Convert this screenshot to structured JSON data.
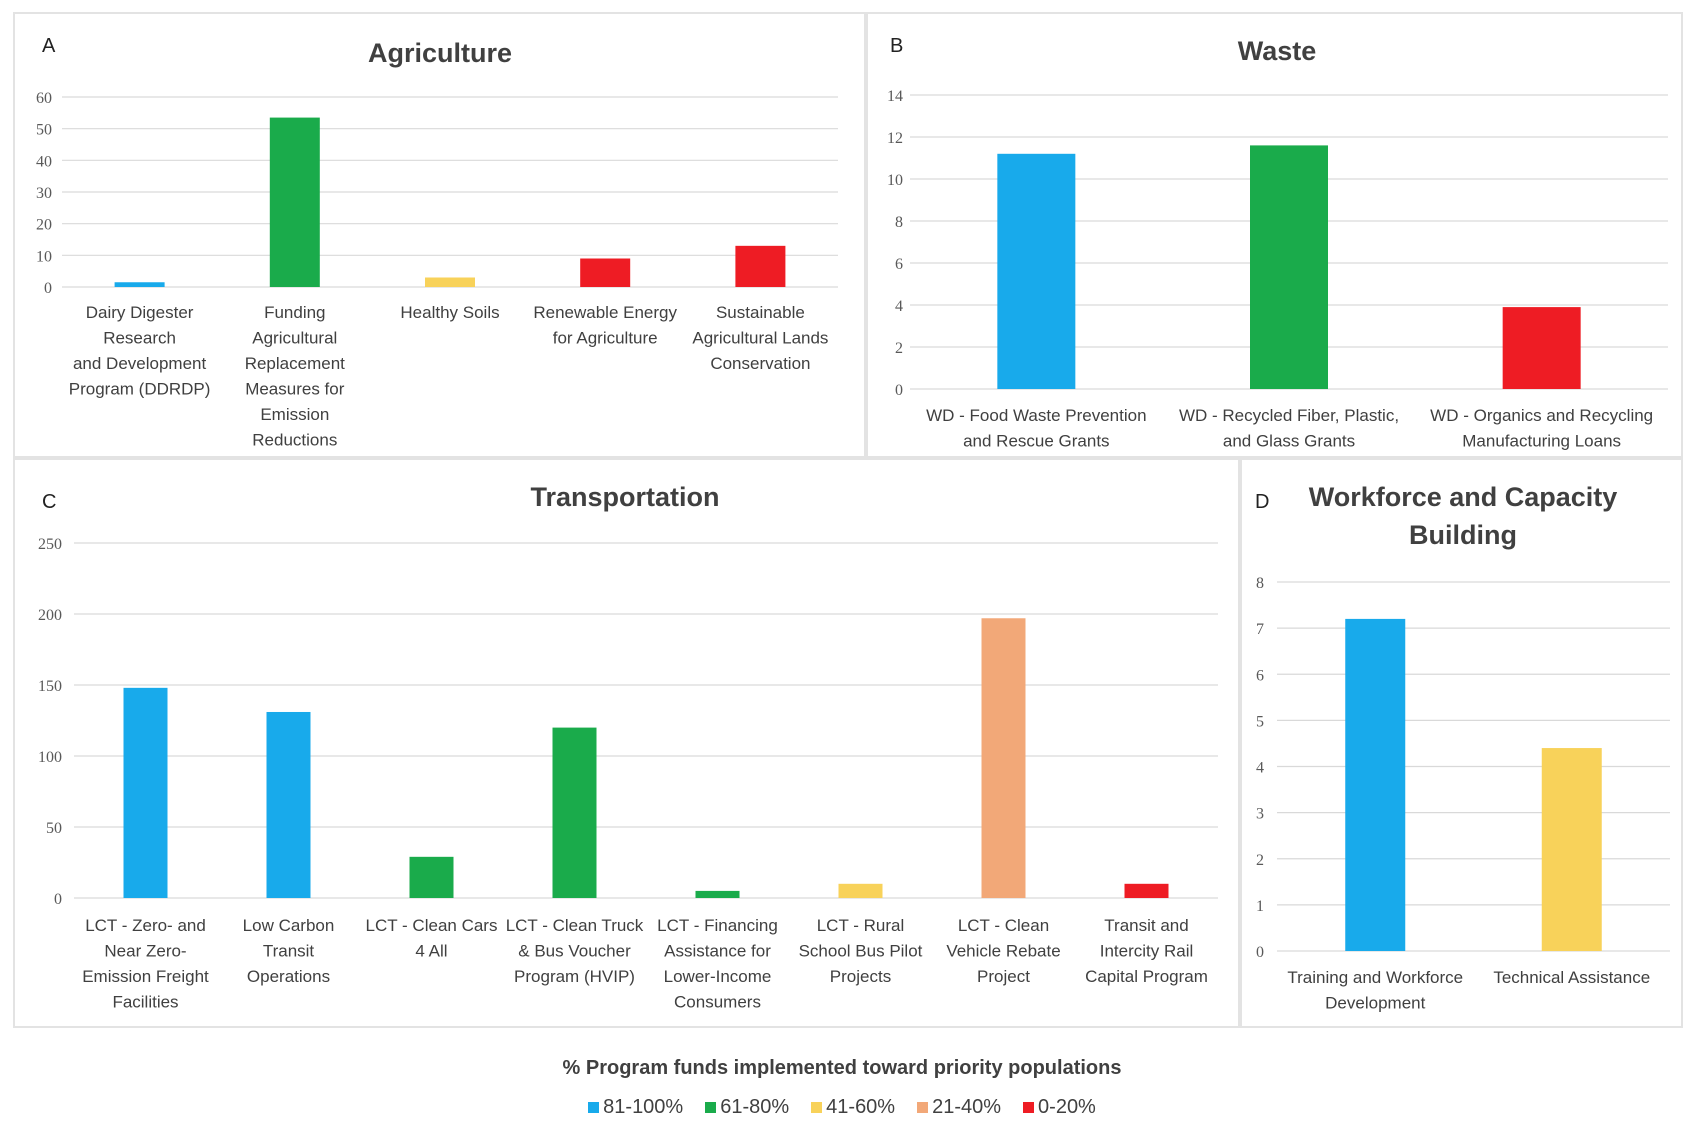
{
  "palette": {
    "81-100%": "#18aaeb",
    "61-80%": "#1aab4b",
    "41-60%": "#f8d25a",
    "21-40%": "#f2a878",
    "0-20%": "#ee1c24"
  },
  "legend": {
    "title": "% Program funds implemented toward priority populations",
    "items": [
      {
        "label": "81-100%",
        "color": "#18aaeb"
      },
      {
        "label": "61-80%",
        "color": "#1aab4b"
      },
      {
        "label": "41-60%",
        "color": "#f8d25a"
      },
      {
        "label": "21-40%",
        "color": "#f2a878"
      },
      {
        "label": "0-20%",
        "color": "#ee1c24"
      }
    ]
  },
  "chart_data": [
    {
      "panel": "A",
      "type": "bar",
      "title": "Agriculture",
      "ylim": [
        0,
        60
      ],
      "yticks": [
        0,
        10,
        20,
        30,
        40,
        50,
        60
      ],
      "grid": true,
      "categories": [
        "Dairy Digester Research and Development Program (DDRDP)",
        "Funding Agricultural Replacement Measures for Emission Reductions",
        "Healthy Soils",
        "Renewable Energy for Agriculture",
        "Sustainable Agricultural Lands Conservation"
      ],
      "values": [
        1.5,
        53.5,
        3,
        9,
        13
      ],
      "color_groups": [
        "81-100%",
        "61-80%",
        "41-60%",
        "0-20%",
        "0-20%"
      ]
    },
    {
      "panel": "B",
      "type": "bar",
      "title": "Waste",
      "ylim": [
        0,
        14
      ],
      "yticks": [
        0,
        2,
        4,
        6,
        8,
        10,
        12,
        14
      ],
      "grid": true,
      "categories": [
        "WD - Food Waste Prevention and Rescue Grants",
        "WD - Recycled Fiber, Plastic, and Glass Grants",
        "WD - Organics and Recycling Manufacturing Loans"
      ],
      "values": [
        11.2,
        11.6,
        3.9
      ],
      "color_groups": [
        "81-100%",
        "61-80%",
        "0-20%"
      ]
    },
    {
      "panel": "C",
      "type": "bar",
      "title": "Transportation",
      "ylim": [
        0,
        250
      ],
      "yticks": [
        0,
        50,
        100,
        150,
        200,
        250
      ],
      "grid": true,
      "categories": [
        "LCT - Zero- and Near Zero-Emission Freight Facilities",
        "Low Carbon Transit Operations",
        "LCT - Clean Cars 4 All",
        "LCT - Clean Truck & Bus Voucher Program (HVIP)",
        "LCT - Financing Assistance for Lower-Income Consumers",
        "LCT - Rural School Bus Pilot Projects",
        "LCT - Clean Vehicle Rebate Project",
        "Transit and Intercity Rail Capital Program"
      ],
      "values": [
        148,
        131,
        29,
        120,
        5,
        10,
        197,
        10
      ],
      "color_groups": [
        "81-100%",
        "81-100%",
        "61-80%",
        "61-80%",
        "61-80%",
        "41-60%",
        "21-40%",
        "0-20%"
      ]
    },
    {
      "panel": "D",
      "type": "bar",
      "title": "Workforce and Capacity Building",
      "ylim": [
        0,
        8
      ],
      "yticks": [
        0,
        1,
        2,
        3,
        4,
        5,
        6,
        7,
        8
      ],
      "grid": true,
      "categories": [
        "Training and Workforce Development",
        "Technical Assistance"
      ],
      "values": [
        7.2,
        4.4
      ],
      "color_groups": [
        "81-100%",
        "41-60%"
      ]
    }
  ]
}
